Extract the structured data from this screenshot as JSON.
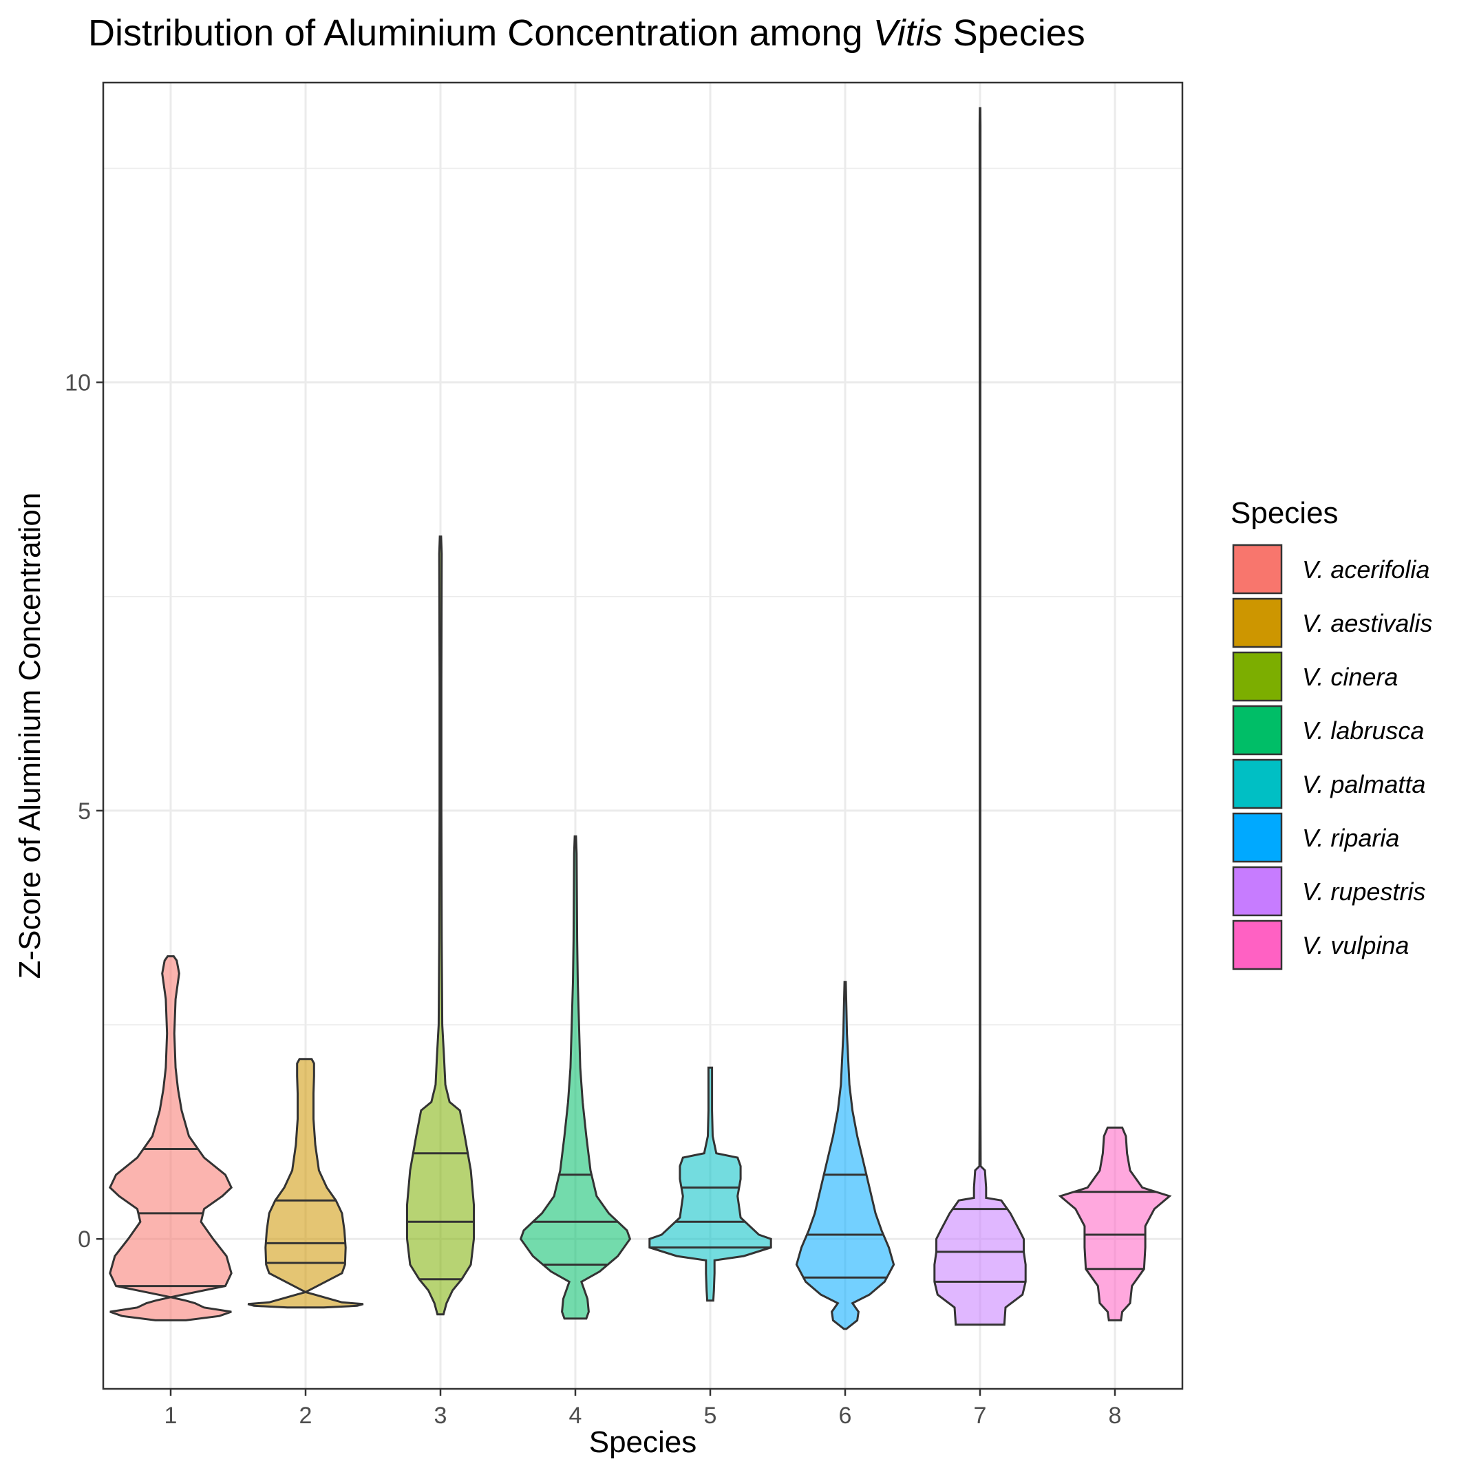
{
  "chart_data": {
    "type": "violin",
    "title_prefix": "Distribution of Aluminium Concentration among ",
    "title_genus": "Vitis",
    "title_suffix": " Species",
    "xlabel": "Species",
    "ylabel": "Z-Score of Aluminium Concentration",
    "ylim": [
      -1.75,
      13.5
    ],
    "yticks": [
      0,
      5,
      10
    ],
    "grid": true,
    "legend": {
      "title": "Species",
      "position": "right"
    },
    "colors": {
      "accent_stroke": "#333333",
      "grid": "#ebebeb",
      "panel_border": "#333333"
    },
    "series": [
      {
        "category": "1",
        "name": "V. acerifolia",
        "color": "#F8766D",
        "min": -0.95,
        "q1": -0.55,
        "median": 0.3,
        "q3": 1.05,
        "max": 3.3,
        "profile": [
          [
            -0.95,
            0.25
          ],
          [
            -0.9,
            0.8
          ],
          [
            -0.85,
            1.0
          ],
          [
            -0.8,
            0.55
          ],
          [
            -0.75,
            0.4
          ],
          [
            -0.72,
            0.25
          ],
          [
            -0.68,
            0.0
          ],
          [
            -0.55,
            0.9
          ],
          [
            -0.4,
            1.0
          ],
          [
            -0.2,
            0.92
          ],
          [
            0.0,
            0.7
          ],
          [
            0.2,
            0.5
          ],
          [
            0.35,
            0.55
          ],
          [
            0.5,
            0.85
          ],
          [
            0.6,
            1.0
          ],
          [
            0.75,
            0.9
          ],
          [
            0.95,
            0.55
          ],
          [
            1.2,
            0.3
          ],
          [
            1.5,
            0.18
          ],
          [
            1.75,
            0.12
          ],
          [
            2.0,
            0.08
          ],
          [
            2.4,
            0.06
          ],
          [
            2.8,
            0.08
          ],
          [
            3.1,
            0.14
          ],
          [
            3.25,
            0.1
          ],
          [
            3.3,
            0.05
          ]
        ]
      },
      {
        "category": "2",
        "name": "V. aestivalis",
        "color": "#CD9600",
        "min": -0.8,
        "q1": -0.28,
        "median": -0.05,
        "q3": 0.45,
        "max": 2.1,
        "profile": [
          [
            -0.8,
            0.3
          ],
          [
            -0.78,
            0.85
          ],
          [
            -0.76,
            0.95
          ],
          [
            -0.74,
            0.6
          ],
          [
            -0.7,
            0.4
          ],
          [
            -0.65,
            0.15
          ],
          [
            -0.62,
            0.0
          ],
          [
            -0.4,
            0.6
          ],
          [
            -0.3,
            0.65
          ],
          [
            -0.1,
            0.66
          ],
          [
            0.1,
            0.64
          ],
          [
            0.3,
            0.6
          ],
          [
            0.45,
            0.5
          ],
          [
            0.6,
            0.35
          ],
          [
            0.8,
            0.22
          ],
          [
            1.1,
            0.16
          ],
          [
            1.4,
            0.13
          ],
          [
            1.7,
            0.13
          ],
          [
            1.9,
            0.14
          ],
          [
            2.05,
            0.14
          ],
          [
            2.1,
            0.1
          ]
        ]
      },
      {
        "category": "3",
        "name": "V. cinera",
        "color": "#7CAE00",
        "min": -0.88,
        "q1": -0.47,
        "median": 0.2,
        "q3": 1.0,
        "max": 8.2,
        "profile": [
          [
            -0.88,
            0.05
          ],
          [
            -0.75,
            0.1
          ],
          [
            -0.6,
            0.2
          ],
          [
            -0.47,
            0.35
          ],
          [
            -0.3,
            0.5
          ],
          [
            0.0,
            0.55
          ],
          [
            0.4,
            0.55
          ],
          [
            0.8,
            0.5
          ],
          [
            1.2,
            0.4
          ],
          [
            1.5,
            0.32
          ],
          [
            1.6,
            0.15
          ],
          [
            1.8,
            0.08
          ],
          [
            2.1,
            0.06
          ],
          [
            2.5,
            0.03
          ],
          [
            3.5,
            0.02
          ],
          [
            5.0,
            0.015
          ],
          [
            6.5,
            0.015
          ],
          [
            8.0,
            0.02
          ],
          [
            8.2,
            0.01
          ]
        ]
      },
      {
        "category": "4",
        "name": "V. labrusca",
        "color": "#00BE67",
        "min": -0.93,
        "q1": -0.3,
        "median": 0.2,
        "q3": 0.75,
        "max": 4.7,
        "profile": [
          [
            -0.93,
            0.18
          ],
          [
            -0.85,
            0.22
          ],
          [
            -0.7,
            0.2
          ],
          [
            -0.6,
            0.15
          ],
          [
            -0.5,
            0.1
          ],
          [
            -0.38,
            0.4
          ],
          [
            -0.2,
            0.7
          ],
          [
            0.0,
            0.9
          ],
          [
            0.1,
            0.85
          ],
          [
            0.3,
            0.55
          ],
          [
            0.5,
            0.35
          ],
          [
            0.8,
            0.25
          ],
          [
            1.2,
            0.18
          ],
          [
            1.6,
            0.12
          ],
          [
            2.0,
            0.08
          ],
          [
            2.5,
            0.06
          ],
          [
            3.0,
            0.04
          ],
          [
            3.5,
            0.03
          ],
          [
            4.0,
            0.025
          ],
          [
            4.5,
            0.02
          ],
          [
            4.7,
            0.01
          ]
        ]
      },
      {
        "category": "5",
        "name": "V. palmatta",
        "color": "#00BFC4",
        "min": -0.72,
        "q1": -0.1,
        "median": 0.2,
        "q3": 0.6,
        "max": 2.0,
        "profile": [
          [
            -0.72,
            0.05
          ],
          [
            -0.6,
            0.06
          ],
          [
            -0.4,
            0.07
          ],
          [
            -0.25,
            0.07
          ],
          [
            -0.2,
            0.55
          ],
          [
            -0.1,
            1.0
          ],
          [
            0.0,
            1.0
          ],
          [
            0.05,
            0.8
          ],
          [
            0.25,
            0.5
          ],
          [
            0.5,
            0.45
          ],
          [
            0.7,
            0.5
          ],
          [
            0.85,
            0.5
          ],
          [
            0.95,
            0.45
          ],
          [
            1.0,
            0.1
          ],
          [
            1.2,
            0.04
          ],
          [
            1.5,
            0.03
          ],
          [
            1.8,
            0.03
          ],
          [
            2.0,
            0.03
          ]
        ]
      },
      {
        "category": "6",
        "name": "V. riparia",
        "color": "#00A9FF",
        "min": -1.05,
        "q1": -0.45,
        "median": 0.05,
        "q3": 0.75,
        "max": 3.0,
        "profile": [
          [
            -1.05,
            0.02
          ],
          [
            -0.95,
            0.2
          ],
          [
            -0.85,
            0.22
          ],
          [
            -0.75,
            0.12
          ],
          [
            -0.65,
            0.4
          ],
          [
            -0.5,
            0.65
          ],
          [
            -0.3,
            0.8
          ],
          [
            -0.1,
            0.72
          ],
          [
            0.1,
            0.6
          ],
          [
            0.3,
            0.5
          ],
          [
            0.6,
            0.4
          ],
          [
            0.9,
            0.3
          ],
          [
            1.2,
            0.2
          ],
          [
            1.5,
            0.12
          ],
          [
            1.8,
            0.07
          ],
          [
            2.1,
            0.05
          ],
          [
            2.4,
            0.03
          ],
          [
            2.7,
            0.02
          ],
          [
            3.0,
            0.01
          ]
        ]
      },
      {
        "category": "7",
        "name": "V. rupestris",
        "color": "#C77CFF",
        "min": -1.0,
        "q1": -0.5,
        "median": -0.15,
        "q3": 0.35,
        "max": 13.2,
        "profile": [
          [
            -1.0,
            0.4
          ],
          [
            -0.8,
            0.42
          ],
          [
            -0.65,
            0.7
          ],
          [
            -0.5,
            0.75
          ],
          [
            -0.3,
            0.75
          ],
          [
            -0.15,
            0.72
          ],
          [
            0.0,
            0.72
          ],
          [
            0.1,
            0.65
          ],
          [
            0.3,
            0.5
          ],
          [
            0.45,
            0.35
          ],
          [
            0.48,
            0.1
          ],
          [
            0.6,
            0.1
          ],
          [
            0.8,
            0.08
          ],
          [
            0.85,
            0.01
          ],
          [
            2.0,
            0.005
          ],
          [
            5.0,
            0.005
          ],
          [
            9.0,
            0.005
          ],
          [
            13.0,
            0.007
          ],
          [
            13.2,
            0.005
          ]
        ]
      },
      {
        "category": "8",
        "name": "V. vulpina",
        "color": "#FF61C3",
        "min": -0.95,
        "q1": -0.35,
        "median": 0.05,
        "q3": 0.55,
        "max": 1.3,
        "profile": [
          [
            -0.95,
            0.1
          ],
          [
            -0.85,
            0.12
          ],
          [
            -0.75,
            0.25
          ],
          [
            -0.55,
            0.28
          ],
          [
            -0.35,
            0.48
          ],
          [
            -0.1,
            0.5
          ],
          [
            0.15,
            0.5
          ],
          [
            0.35,
            0.65
          ],
          [
            0.5,
            0.9
          ],
          [
            0.6,
            0.45
          ],
          [
            0.8,
            0.25
          ],
          [
            1.0,
            0.2
          ],
          [
            1.2,
            0.18
          ],
          [
            1.3,
            0.12
          ]
        ]
      }
    ]
  }
}
